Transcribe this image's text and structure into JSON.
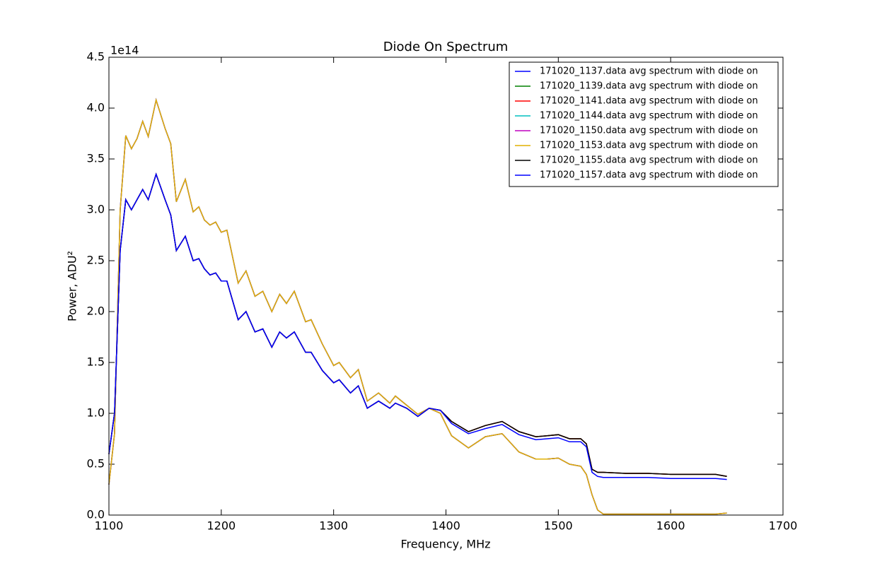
{
  "chart_data": {
    "type": "line",
    "title": "Diode On Spectrum",
    "x_label": "Frequency, MHz",
    "y_label": "Power, ADU²",
    "y_offset_label": "1e14",
    "xlim": [
      1100,
      1700
    ],
    "xticks": [
      1100,
      1200,
      1300,
      1400,
      1500,
      1600,
      1700
    ],
    "ylim": [
      0,
      4.5
    ],
    "yticks": [
      {
        "value": 0,
        "label": "0.0"
      },
      0.5,
      {
        "value": 1,
        "label": "1.0"
      },
      1.5,
      {
        "value": 2,
        "label": "2.0"
      },
      2.5,
      {
        "value": 3,
        "label": "3.0"
      },
      3.5,
      {
        "value": 4,
        "label": "4.0"
      },
      4.5
    ],
    "grid": false,
    "legend_position": "upper-right",
    "x": [
      1100,
      1105,
      1110,
      1115,
      1120,
      1125,
      1130,
      1135,
      1142,
      1150,
      1155,
      1160,
      1168,
      1175,
      1180,
      1185,
      1190,
      1195,
      1200,
      1205,
      1215,
      1222,
      1230,
      1237,
      1245,
      1252,
      1258,
      1265,
      1275,
      1280,
      1290,
      1300,
      1305,
      1315,
      1322,
      1330,
      1340,
      1350,
      1355,
      1365,
      1375,
      1385,
      1395,
      1405,
      1420,
      1435,
      1450,
      1465,
      1480,
      1490,
      1500,
      1510,
      1520,
      1525,
      1530,
      1535,
      1540,
      1560,
      1580,
      1600,
      1620,
      1640,
      1650
    ],
    "series": [
      {
        "name": "171020_1137.data avg spectrum with diode on",
        "color": "#0000ff",
        "values": [
          0.3,
          0.8,
          3.0,
          3.73,
          3.6,
          3.7,
          3.87,
          3.72,
          4.08,
          3.8,
          3.65,
          3.08,
          3.3,
          2.98,
          3.03,
          2.9,
          2.85,
          2.88,
          2.78,
          2.8,
          2.28,
          2.4,
          2.15,
          2.2,
          2.0,
          2.17,
          2.08,
          2.2,
          1.9,
          1.92,
          1.68,
          1.47,
          1.5,
          1.35,
          1.43,
          1.12,
          1.2,
          1.1,
          1.17,
          1.08,
          0.99,
          1.05,
          1.0,
          0.78,
          0.66,
          0.77,
          0.8,
          0.62,
          0.55,
          0.55,
          0.56,
          0.5,
          0.48,
          0.4,
          0.2,
          0.05,
          0.01,
          0.01,
          0.01,
          0.01,
          0.01,
          0.01,
          0.02
        ]
      },
      {
        "name": "171020_1139.data avg spectrum with diode on",
        "color": "#008000",
        "values": [
          0.6,
          1.0,
          2.6,
          3.1,
          3.0,
          3.1,
          3.2,
          3.1,
          3.35,
          3.1,
          2.95,
          2.6,
          2.74,
          2.5,
          2.52,
          2.42,
          2.36,
          2.38,
          2.3,
          2.3,
          1.92,
          2.0,
          1.8,
          1.83,
          1.65,
          1.8,
          1.74,
          1.8,
          1.6,
          1.6,
          1.42,
          1.3,
          1.33,
          1.2,
          1.27,
          1.05,
          1.12,
          1.05,
          1.1,
          1.05,
          0.97,
          1.05,
          1.03,
          0.92,
          0.82,
          0.88,
          0.92,
          0.82,
          0.77,
          0.78,
          0.79,
          0.75,
          0.75,
          0.7,
          0.45,
          0.42,
          0.42,
          0.41,
          0.41,
          0.4,
          0.4,
          0.4,
          0.38
        ]
      },
      {
        "name": "171020_1141.data avg spectrum with diode on",
        "color": "#ff0000",
        "values": [
          0.6,
          1.0,
          2.6,
          3.1,
          3.0,
          3.1,
          3.2,
          3.1,
          3.35,
          3.1,
          2.95,
          2.6,
          2.74,
          2.5,
          2.52,
          2.42,
          2.36,
          2.38,
          2.3,
          2.3,
          1.92,
          2.0,
          1.8,
          1.83,
          1.65,
          1.8,
          1.74,
          1.8,
          1.6,
          1.6,
          1.42,
          1.3,
          1.33,
          1.2,
          1.27,
          1.05,
          1.12,
          1.05,
          1.1,
          1.05,
          0.97,
          1.05,
          1.03,
          0.92,
          0.82,
          0.88,
          0.92,
          0.82,
          0.77,
          0.78,
          0.79,
          0.75,
          0.75,
          0.7,
          0.45,
          0.42,
          0.42,
          0.41,
          0.41,
          0.4,
          0.4,
          0.4,
          0.38
        ]
      },
      {
        "name": "171020_1144.data avg spectrum with diode on",
        "color": "#00bfbf",
        "values": [
          0.3,
          0.8,
          3.0,
          3.73,
          3.6,
          3.7,
          3.87,
          3.72,
          4.08,
          3.8,
          3.65,
          3.08,
          3.3,
          2.98,
          3.03,
          2.9,
          2.85,
          2.88,
          2.78,
          2.8,
          2.28,
          2.4,
          2.15,
          2.2,
          2.0,
          2.17,
          2.08,
          2.2,
          1.9,
          1.92,
          1.68,
          1.47,
          1.5,
          1.35,
          1.43,
          1.12,
          1.2,
          1.1,
          1.17,
          1.08,
          0.99,
          1.05,
          1.0,
          0.78,
          0.66,
          0.77,
          0.8,
          0.62,
          0.55,
          0.55,
          0.56,
          0.5,
          0.48,
          0.4,
          0.2,
          0.05,
          0.01,
          0.01,
          0.01,
          0.01,
          0.01,
          0.01,
          0.02
        ]
      },
      {
        "name": "171020_1150.data avg spectrum with diode on",
        "color": "#bf00bf",
        "values": [
          0.3,
          0.8,
          3.0,
          3.73,
          3.6,
          3.7,
          3.87,
          3.72,
          4.08,
          3.8,
          3.65,
          3.08,
          3.3,
          2.98,
          3.03,
          2.9,
          2.85,
          2.88,
          2.78,
          2.8,
          2.28,
          2.4,
          2.15,
          2.2,
          2.0,
          2.17,
          2.08,
          2.2,
          1.9,
          1.92,
          1.68,
          1.47,
          1.5,
          1.35,
          1.43,
          1.12,
          1.2,
          1.1,
          1.17,
          1.08,
          0.99,
          1.05,
          1.0,
          0.78,
          0.66,
          0.77,
          0.8,
          0.62,
          0.55,
          0.55,
          0.56,
          0.5,
          0.48,
          0.4,
          0.2,
          0.05,
          0.01,
          0.01,
          0.01,
          0.01,
          0.01,
          0.01,
          0.02
        ]
      },
      {
        "name": "171020_1153.data avg spectrum with diode on",
        "color": "#e0b000",
        "values": [
          0.3,
          0.8,
          3.0,
          3.73,
          3.6,
          3.7,
          3.87,
          3.72,
          4.08,
          3.8,
          3.65,
          3.08,
          3.3,
          2.98,
          3.03,
          2.9,
          2.85,
          2.88,
          2.78,
          2.8,
          2.28,
          2.4,
          2.15,
          2.2,
          2.0,
          2.17,
          2.08,
          2.2,
          1.9,
          1.92,
          1.68,
          1.47,
          1.5,
          1.35,
          1.43,
          1.12,
          1.2,
          1.1,
          1.17,
          1.08,
          0.99,
          1.05,
          1.0,
          0.78,
          0.66,
          0.77,
          0.8,
          0.62,
          0.55,
          0.55,
          0.56,
          0.5,
          0.48,
          0.4,
          0.2,
          0.05,
          0.01,
          0.01,
          0.01,
          0.01,
          0.01,
          0.01,
          0.02
        ]
      },
      {
        "name": "171020_1155.data avg spectrum with diode on",
        "color": "#000000",
        "values": [
          0.6,
          1.0,
          2.6,
          3.1,
          3.0,
          3.1,
          3.2,
          3.1,
          3.35,
          3.1,
          2.95,
          2.6,
          2.74,
          2.5,
          2.52,
          2.42,
          2.36,
          2.38,
          2.3,
          2.3,
          1.92,
          2.0,
          1.8,
          1.83,
          1.65,
          1.8,
          1.74,
          1.8,
          1.6,
          1.6,
          1.42,
          1.3,
          1.33,
          1.2,
          1.27,
          1.05,
          1.12,
          1.05,
          1.1,
          1.05,
          0.97,
          1.05,
          1.03,
          0.92,
          0.82,
          0.88,
          0.92,
          0.82,
          0.77,
          0.78,
          0.79,
          0.75,
          0.75,
          0.7,
          0.45,
          0.42,
          0.42,
          0.41,
          0.41,
          0.4,
          0.4,
          0.4,
          0.38
        ]
      },
      {
        "name": "171020_1157.data avg spectrum with diode on",
        "color": "#0000ff",
        "values": [
          0.6,
          1.0,
          2.6,
          3.1,
          3.0,
          3.1,
          3.2,
          3.1,
          3.35,
          3.1,
          2.95,
          2.6,
          2.74,
          2.5,
          2.52,
          2.42,
          2.36,
          2.38,
          2.3,
          2.3,
          1.92,
          2.0,
          1.8,
          1.83,
          1.65,
          1.8,
          1.74,
          1.8,
          1.6,
          1.6,
          1.42,
          1.3,
          1.33,
          1.2,
          1.27,
          1.05,
          1.12,
          1.05,
          1.1,
          1.05,
          0.97,
          1.05,
          1.03,
          0.9,
          0.8,
          0.85,
          0.89,
          0.79,
          0.74,
          0.75,
          0.76,
          0.72,
          0.72,
          0.67,
          0.42,
          0.38,
          0.37,
          0.37,
          0.37,
          0.36,
          0.36,
          0.36,
          0.35
        ]
      }
    ]
  }
}
